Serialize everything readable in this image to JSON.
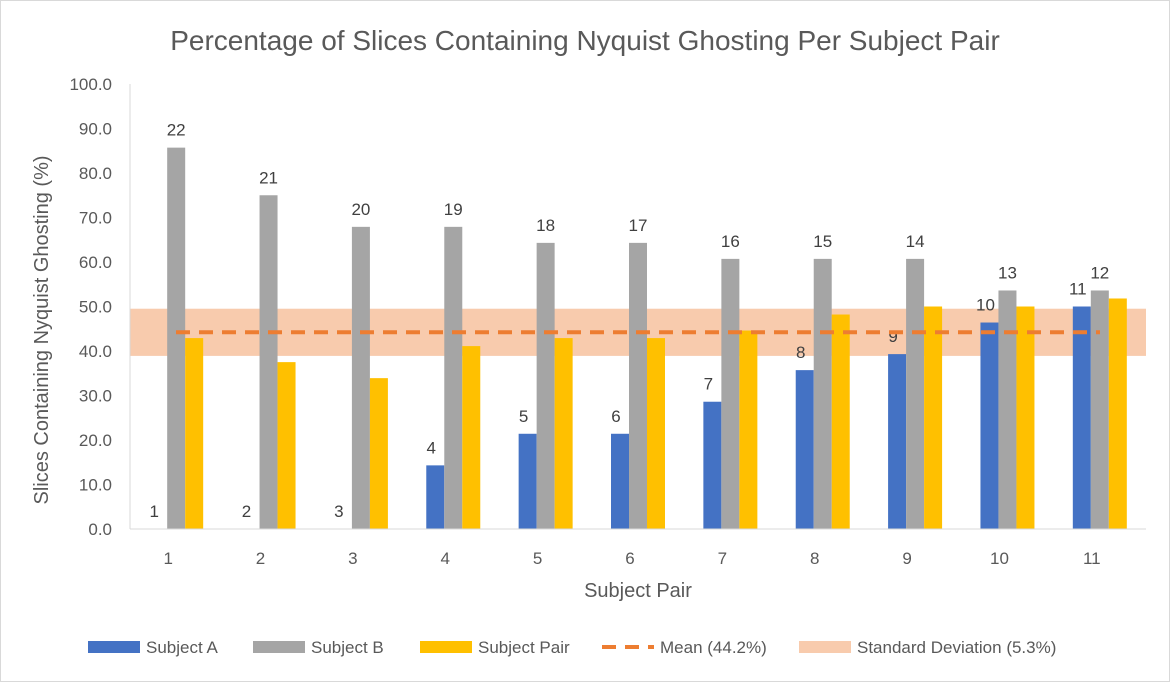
{
  "chart_data": {
    "type": "bar",
    "title": "Percentage of Slices Containing Nyquist Ghosting Per Subject Pair",
    "xlabel": "Subject Pair",
    "ylabel": "Slices Containing Nyquist Ghosting (%)",
    "ylim": [
      0,
      100
    ],
    "y_ticks": [
      "0.0",
      "10.0",
      "20.0",
      "30.0",
      "40.0",
      "50.0",
      "60.0",
      "70.0",
      "80.0",
      "90.0",
      "100.0"
    ],
    "categories": [
      "1",
      "2",
      "3",
      "4",
      "5",
      "6",
      "7",
      "8",
      "9",
      "10",
      "11"
    ],
    "series": [
      {
        "name": "Subject A",
        "color": "#4472c4",
        "values": [
          0,
          0,
          0,
          14.3,
          21.4,
          21.4,
          28.6,
          35.7,
          39.3,
          46.4,
          50.0
        ],
        "labels": [
          "1",
          "2",
          "3",
          "4",
          "5",
          "6",
          "7",
          "8",
          "9",
          "10",
          "11"
        ]
      },
      {
        "name": "Subject B",
        "color": "#a5a5a5",
        "values": [
          85.7,
          75.0,
          67.9,
          67.9,
          64.3,
          64.3,
          60.7,
          60.7,
          60.7,
          53.6,
          53.6
        ],
        "labels": [
          "22",
          "21",
          "20",
          "19",
          "18",
          "17",
          "16",
          "15",
          "14",
          "13",
          "12"
        ]
      },
      {
        "name": "Subject Pair",
        "color": "#ffc000",
        "values": [
          42.9,
          37.5,
          33.9,
          41.1,
          42.9,
          42.9,
          44.6,
          48.2,
          50.0,
          50.0,
          51.8
        ]
      }
    ],
    "mean": {
      "name": "Mean (44.2%)",
      "value": 44.2,
      "color": "#ed7d31"
    },
    "std_band": {
      "name": "Standard Deviation (5.3%)",
      "low": 38.9,
      "high": 49.5,
      "color": "#f8cbad"
    },
    "legend": [
      "Subject A",
      "Subject B",
      "Subject Pair",
      "Mean (44.2%)",
      "Standard Deviation (5.3%)"
    ],
    "legend_position": "bottom",
    "grid": false
  }
}
